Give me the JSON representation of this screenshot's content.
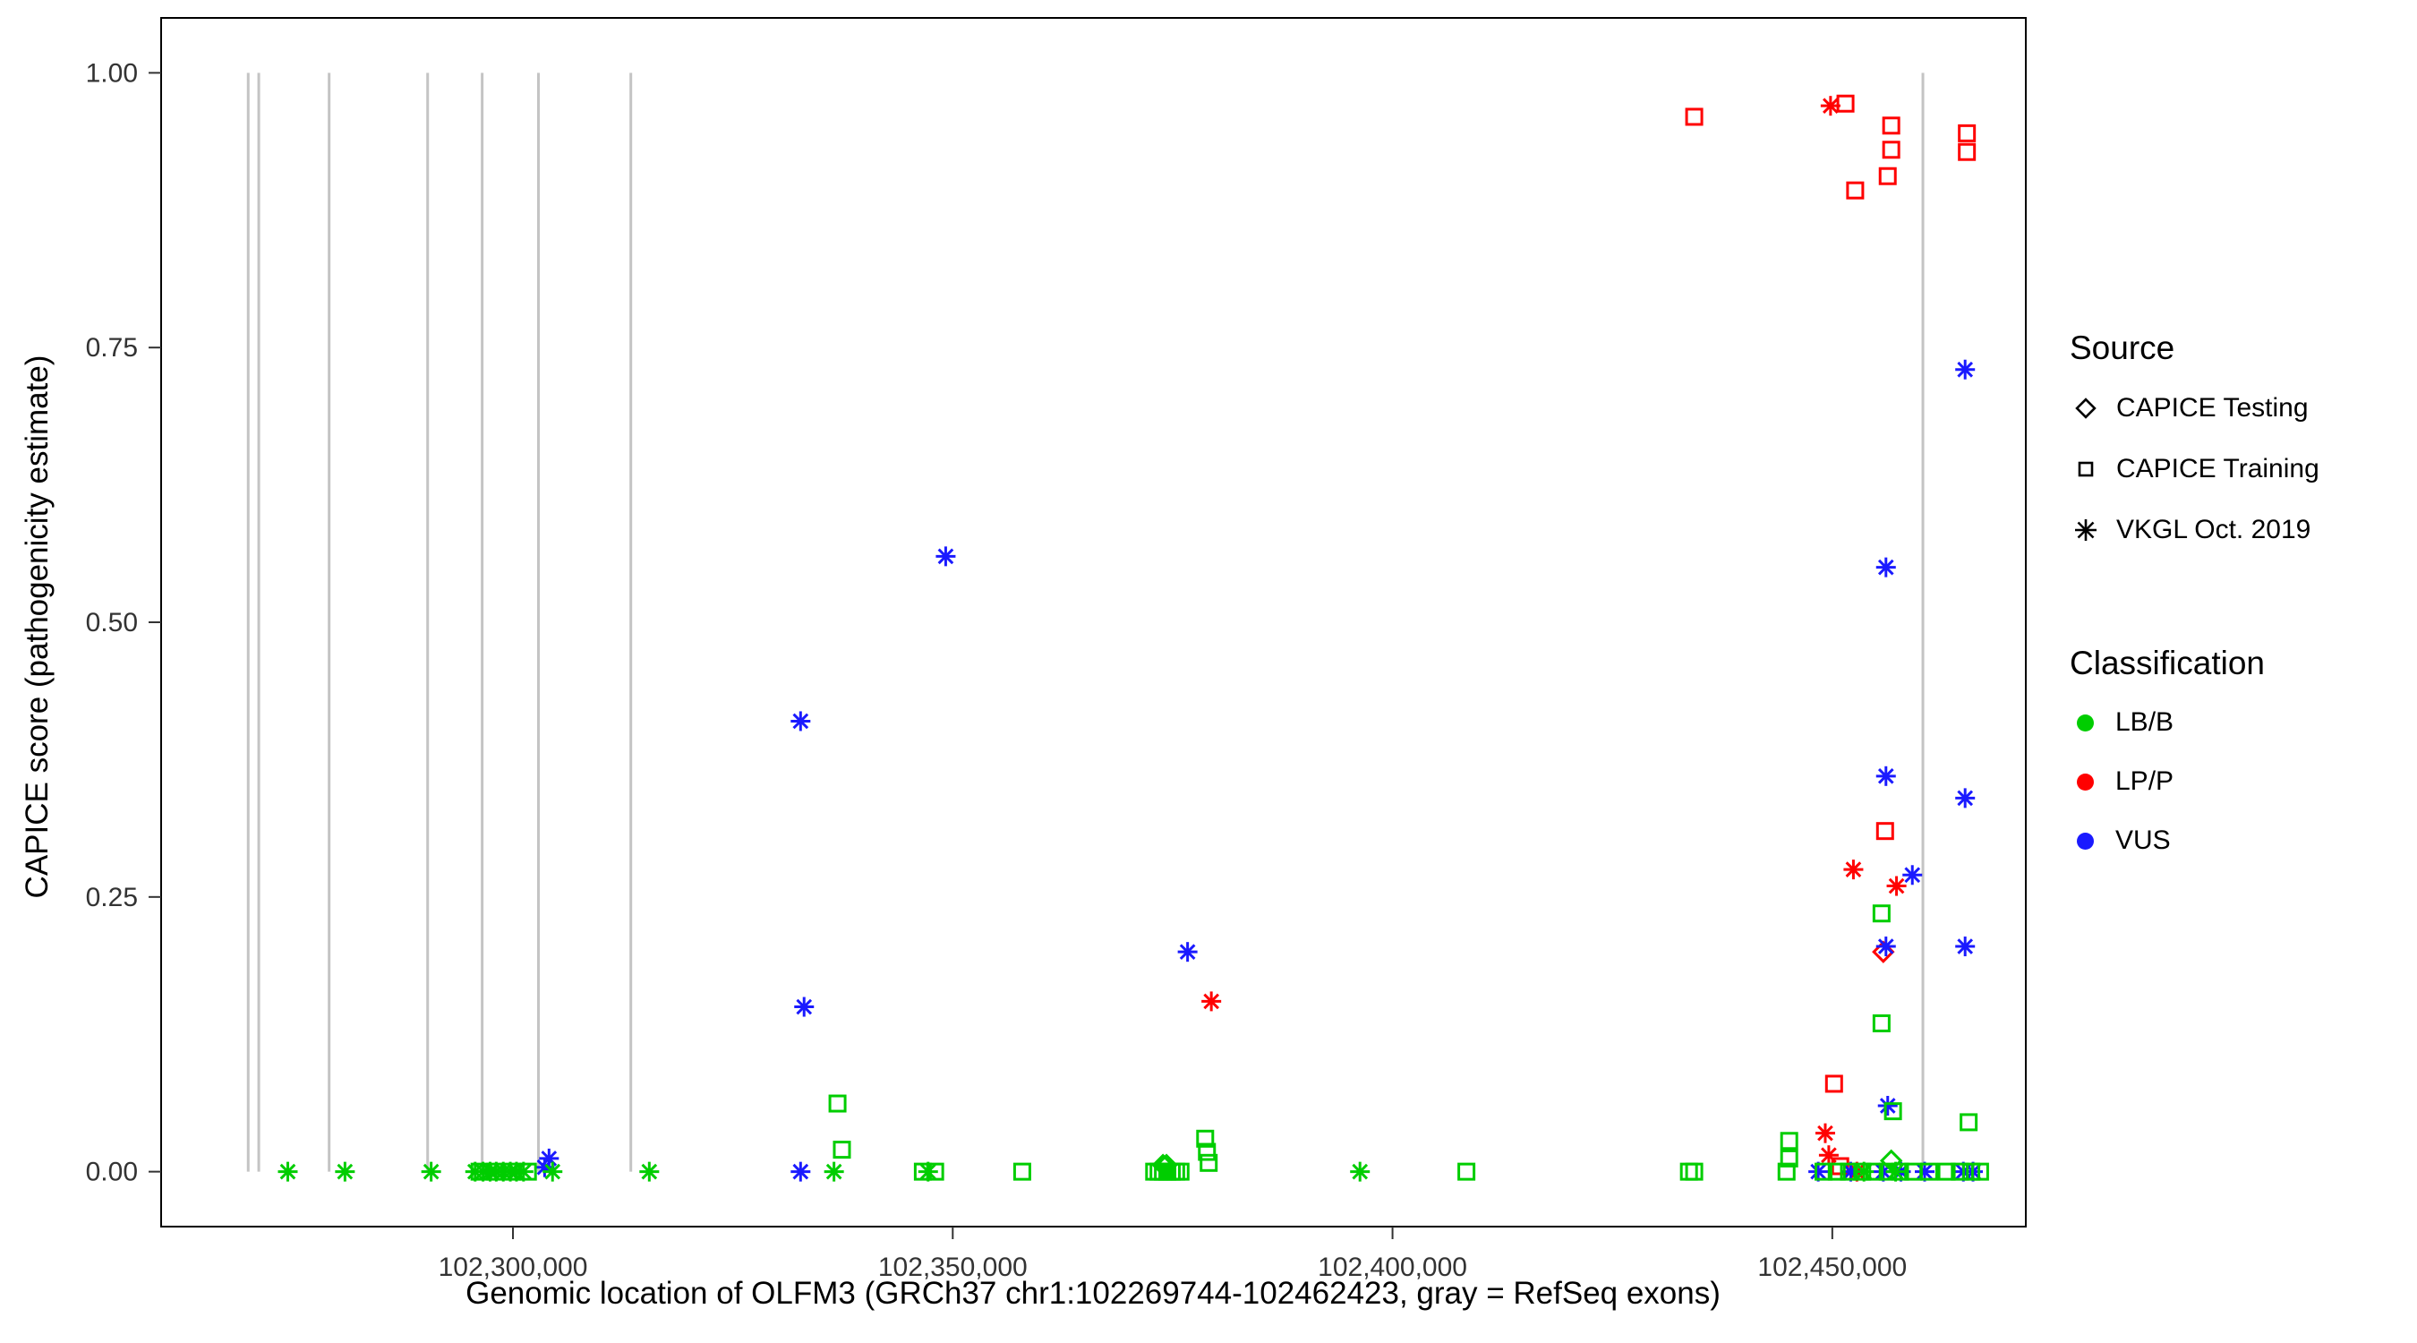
{
  "axes": {
    "x": {
      "label": "Genomic location of OLFM3 (GRCh37 chr1:102269744-102462423, gray = RefSeq exons)",
      "ticks": [
        102300000,
        102350000,
        102400000,
        102450000
      ],
      "tick_labels": [
        "102,300,000",
        "102,350,000",
        "102,400,000",
        "102,450,000"
      ],
      "range": [
        102260000,
        102472000
      ]
    },
    "y": {
      "label": "CAPICE score (pathogenicity estimate)",
      "ticks": [
        0.0,
        0.25,
        0.5,
        0.75,
        1.0
      ],
      "tick_labels": [
        "0.00",
        "0.25",
        "0.50",
        "0.75",
        "1.00"
      ],
      "range": [
        -0.05,
        1.05
      ]
    }
  },
  "legend": {
    "source": {
      "title": "Source",
      "items": [
        {
          "shape": "diamond",
          "label": "CAPICE Testing"
        },
        {
          "shape": "square",
          "label": "CAPICE Training"
        },
        {
          "shape": "asterisk",
          "label": "VKGL Oct. 2019"
        }
      ]
    },
    "classification": {
      "title": "Classification",
      "items": [
        {
          "label": "LB/B",
          "color": "#00CD00"
        },
        {
          "label": "LP/P",
          "color": "#FF0000"
        },
        {
          "label": "VUS",
          "color": "#1A1AFF"
        }
      ]
    }
  },
  "exons": {
    "color": "#C4C4C4",
    "positions": [
      102269900,
      102271100,
      102279100,
      102290300,
      102296500,
      102302900,
      102313400,
      102460300
    ]
  },
  "chart_data": {
    "type": "scatter",
    "title": "",
    "xlabel": "Genomic location of OLFM3 (GRCh37 chr1:102269744-102462423, gray = RefSeq exons)",
    "ylabel": "CAPICE score (pathogenicity estimate)",
    "xlim": [
      102260000,
      102472000
    ],
    "ylim": [
      -0.05,
      1.05
    ],
    "grid": false,
    "legend_position": "right",
    "points_columns": [
      "position",
      "score",
      "shape",
      "classification"
    ],
    "points": [
      [
        102434300,
        0.96,
        "square",
        "LP/P"
      ],
      [
        102449800,
        0.97,
        "asterisk",
        "LP/P"
      ],
      [
        102451500,
        0.972,
        "square",
        "LP/P"
      ],
      [
        102456700,
        0.952,
        "square",
        "LP/P"
      ],
      [
        102456700,
        0.93,
        "square",
        "LP/P"
      ],
      [
        102452600,
        0.893,
        "square",
        "LP/P"
      ],
      [
        102456300,
        0.906,
        "square",
        "LP/P"
      ],
      [
        102465300,
        0.945,
        "square",
        "LP/P"
      ],
      [
        102465300,
        0.928,
        "square",
        "LP/P"
      ],
      [
        102456000,
        0.31,
        "square",
        "LP/P"
      ],
      [
        102452400,
        0.275,
        "asterisk",
        "LP/P"
      ],
      [
        102457300,
        0.26,
        "asterisk",
        "LP/P"
      ],
      [
        102379400,
        0.155,
        "asterisk",
        "LP/P"
      ],
      [
        102455800,
        0.2,
        "diamond",
        "LP/P"
      ],
      [
        102450200,
        0.08,
        "square",
        "LP/P"
      ],
      [
        102449200,
        0.035,
        "asterisk",
        "LP/P"
      ],
      [
        102449600,
        0.015,
        "asterisk",
        "LP/P"
      ],
      [
        102450900,
        0.005,
        "square",
        "LP/P"
      ],
      [
        102452800,
        0.0,
        "asterisk",
        "LP/P"
      ],
      [
        102349200,
        0.56,
        "asterisk",
        "VUS"
      ],
      [
        102332700,
        0.41,
        "asterisk",
        "VUS"
      ],
      [
        102333100,
        0.15,
        "asterisk",
        "VUS"
      ],
      [
        102376700,
        0.2,
        "asterisk",
        "VUS"
      ],
      [
        102465100,
        0.73,
        "asterisk",
        "VUS"
      ],
      [
        102456100,
        0.55,
        "asterisk",
        "VUS"
      ],
      [
        102456100,
        0.36,
        "asterisk",
        "VUS"
      ],
      [
        102465100,
        0.34,
        "asterisk",
        "VUS"
      ],
      [
        102459100,
        0.27,
        "asterisk",
        "VUS"
      ],
      [
        102456100,
        0.205,
        "asterisk",
        "VUS"
      ],
      [
        102465100,
        0.205,
        "asterisk",
        "VUS"
      ],
      [
        102456300,
        0.06,
        "asterisk",
        "VUS"
      ],
      [
        102304100,
        0.012,
        "asterisk",
        "VUS"
      ],
      [
        102303600,
        0.004,
        "asterisk",
        "VUS"
      ],
      [
        102332700,
        0.0,
        "asterisk",
        "VUS"
      ],
      [
        102448400,
        0.0,
        "asterisk",
        "VUS"
      ],
      [
        102452100,
        0.0,
        "asterisk",
        "VUS"
      ],
      [
        102455800,
        0.0,
        "asterisk",
        "VUS"
      ],
      [
        102457800,
        0.0,
        "asterisk",
        "VUS"
      ],
      [
        102460500,
        0.0,
        "asterisk",
        "VUS"
      ],
      [
        102464900,
        0.0,
        "asterisk",
        "VUS"
      ],
      [
        102466000,
        0.0,
        "asterisk",
        "VUS"
      ],
      [
        102336900,
        0.062,
        "square",
        "LB/B"
      ],
      [
        102337400,
        0.02,
        "square",
        "LB/B"
      ],
      [
        102455600,
        0.235,
        "square",
        "LB/B"
      ],
      [
        102455600,
        0.135,
        "square",
        "LB/B"
      ],
      [
        102456900,
        0.055,
        "square",
        "LB/B"
      ],
      [
        102465500,
        0.045,
        "square",
        "LB/B"
      ],
      [
        102378700,
        0.03,
        "square",
        "LB/B"
      ],
      [
        102378900,
        0.018,
        "square",
        "LB/B"
      ],
      [
        102379100,
        0.008,
        "square",
        "LB/B"
      ],
      [
        102445100,
        0.028,
        "square",
        "LB/B"
      ],
      [
        102445100,
        0.012,
        "square",
        "LB/B"
      ],
      [
        102373900,
        0.006,
        "diamond",
        "LB/B"
      ],
      [
        102374300,
        0.006,
        "diamond",
        "LB/B"
      ],
      [
        102456700,
        0.01,
        "diamond",
        "LB/B"
      ],
      [
        102274400,
        0.0,
        "asterisk",
        "LB/B"
      ],
      [
        102280900,
        0.0,
        "asterisk",
        "LB/B"
      ],
      [
        102290700,
        0.0,
        "asterisk",
        "LB/B"
      ],
      [
        102295700,
        0.0,
        "asterisk",
        "LB/B"
      ],
      [
        102296600,
        0.0,
        "asterisk",
        "LB/B"
      ],
      [
        102297400,
        0.0,
        "asterisk",
        "LB/B"
      ],
      [
        102298100,
        0.0,
        "asterisk",
        "LB/B"
      ],
      [
        102298900,
        0.0,
        "asterisk",
        "LB/B"
      ],
      [
        102299700,
        0.0,
        "asterisk",
        "LB/B"
      ],
      [
        102300400,
        0.0,
        "asterisk",
        "LB/B"
      ],
      [
        102301200,
        0.0,
        "asterisk",
        "LB/B"
      ],
      [
        102304500,
        0.0,
        "asterisk",
        "LB/B"
      ],
      [
        102315500,
        0.0,
        "asterisk",
        "LB/B"
      ],
      [
        102336500,
        0.0,
        "asterisk",
        "LB/B"
      ],
      [
        102347200,
        0.0,
        "asterisk",
        "LB/B"
      ],
      [
        102396300,
        0.0,
        "asterisk",
        "LB/B"
      ],
      [
        102453600,
        0.0,
        "asterisk",
        "LB/B"
      ],
      [
        102457200,
        0.0,
        "asterisk",
        "LB/B"
      ],
      [
        102296200,
        0.0,
        "square",
        "LB/B"
      ],
      [
        102298000,
        0.0,
        "square",
        "LB/B"
      ],
      [
        102299900,
        0.0,
        "square",
        "LB/B"
      ],
      [
        102301700,
        0.0,
        "square",
        "LB/B"
      ],
      [
        102346600,
        0.0,
        "square",
        "LB/B"
      ],
      [
        102348000,
        0.0,
        "square",
        "LB/B"
      ],
      [
        102357900,
        0.0,
        "square",
        "LB/B"
      ],
      [
        102372900,
        0.0,
        "square",
        "LB/B"
      ],
      [
        102373400,
        0.0,
        "square",
        "LB/B"
      ],
      [
        102373900,
        0.0,
        "square",
        "LB/B"
      ],
      [
        102374400,
        0.0,
        "square",
        "LB/B"
      ],
      [
        102374900,
        0.0,
        "square",
        "LB/B"
      ],
      [
        102375400,
        0.0,
        "square",
        "LB/B"
      ],
      [
        102375900,
        0.0,
        "square",
        "LB/B"
      ],
      [
        102408400,
        0.0,
        "square",
        "LB/B"
      ],
      [
        102433700,
        0.0,
        "square",
        "LB/B"
      ],
      [
        102434300,
        0.0,
        "square",
        "LB/B"
      ],
      [
        102444800,
        0.0,
        "square",
        "LB/B"
      ],
      [
        102449000,
        0.0,
        "square",
        "LB/B"
      ],
      [
        102450500,
        0.0,
        "square",
        "LB/B"
      ],
      [
        102451900,
        0.0,
        "square",
        "LB/B"
      ],
      [
        102453400,
        0.0,
        "square",
        "LB/B"
      ],
      [
        102454800,
        0.0,
        "square",
        "LB/B"
      ],
      [
        102456300,
        0.0,
        "square",
        "LB/B"
      ],
      [
        102457700,
        0.0,
        "square",
        "LB/B"
      ],
      [
        102459200,
        0.0,
        "square",
        "LB/B"
      ],
      [
        102461000,
        0.0,
        "square",
        "LB/B"
      ],
      [
        102463000,
        0.0,
        "square",
        "LB/B"
      ],
      [
        102464500,
        0.0,
        "square",
        "LB/B"
      ],
      [
        102465800,
        0.0,
        "square",
        "LB/B"
      ],
      [
        102466800,
        0.0,
        "square",
        "LB/B"
      ]
    ]
  }
}
